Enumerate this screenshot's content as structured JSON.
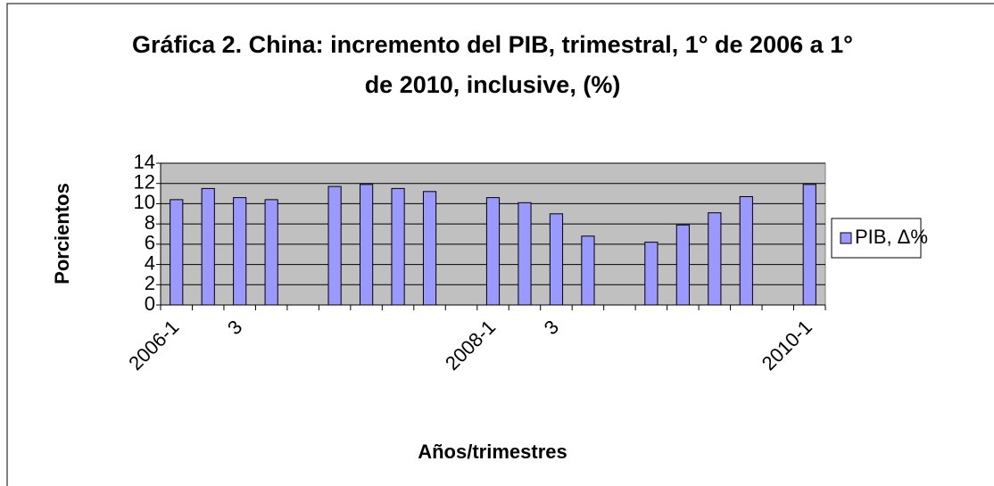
{
  "chart_data": {
    "type": "bar",
    "title": "Gráfica 2. China: incremento del PIB, trimestral, 1° de 2006 a 1° de 2010, inclusive, (%)",
    "xlabel": "Años/trimestres",
    "ylabel": "Porcientos",
    "categories": [
      "2006-1",
      null,
      "3",
      null,
      null,
      null,
      null,
      null,
      null,
      null,
      "2008-1",
      null,
      "3",
      null,
      null,
      null,
      null,
      null,
      null,
      null,
      "2010-1"
    ],
    "series": [
      {
        "name": "PIB, Δ%",
        "color": "#9999ff",
        "values": [
          10.4,
          11.5,
          10.6,
          10.4,
          null,
          11.7,
          11.9,
          11.5,
          11.2,
          null,
          10.6,
          10.1,
          9.0,
          6.8,
          null,
          6.2,
          7.9,
          9.1,
          10.7,
          null,
          11.9
        ]
      }
    ],
    "ylim": [
      0,
      14
    ],
    "yticks": [
      0,
      2,
      4,
      6,
      8,
      10,
      12,
      14
    ],
    "grid": true,
    "legend": "right"
  }
}
